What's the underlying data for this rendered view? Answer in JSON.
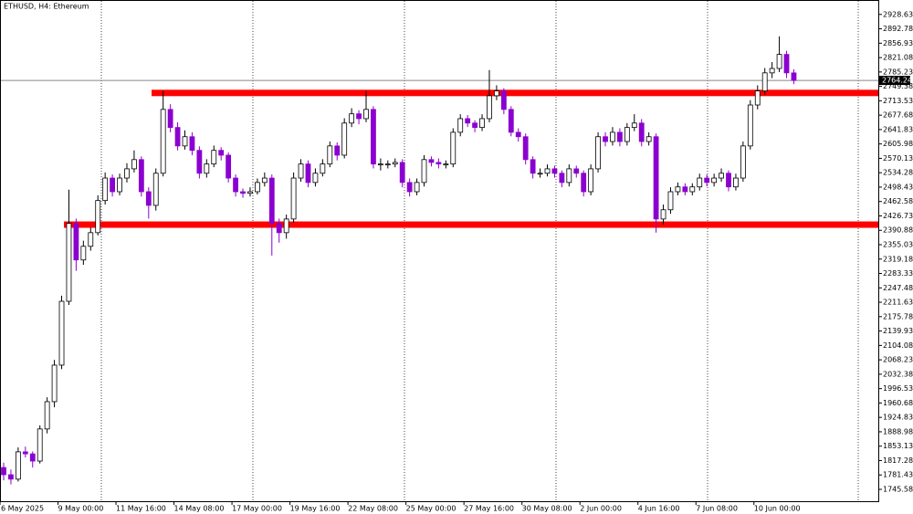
{
  "chart_data": {
    "type": "candlestick",
    "title": "ETHUSD, H4:  Ethereum",
    "ylim": [
      1716,
      2960
    ],
    "yticks": [
      2928.63,
      2892.78,
      2856.93,
      2821.08,
      2785.23,
      2749.38,
      2713.53,
      2677.68,
      2641.83,
      2605.98,
      2570.13,
      2534.28,
      2498.43,
      2462.58,
      2426.73,
      2390.88,
      2355.03,
      2319.18,
      2283.33,
      2247.48,
      2211.63,
      2175.78,
      2139.93,
      2104.08,
      2068.23,
      2032.38,
      1996.53,
      1960.68,
      1924.83,
      1888.98,
      1853.13,
      1817.28,
      1781.43,
      1745.58
    ],
    "last_price": 2764.24,
    "up_color": "#ffffff",
    "down_color": "#8b00d0",
    "levels": [
      {
        "value": 2733,
        "color": "#ff0000"
      },
      {
        "value": 2405,
        "color": "#ff0000"
      }
    ],
    "categories": [
      "6 May 2025",
      null,
      null,
      null,
      null,
      null,
      null,
      null,
      "9 May 00:00",
      null,
      null,
      null,
      null,
      null,
      null,
      null,
      "11 May 16:00",
      null,
      null,
      null,
      null,
      null,
      null,
      null,
      "14 May 08:00",
      null,
      null,
      null,
      null,
      null,
      null,
      null,
      "17 May 00:00",
      null,
      null,
      null,
      null,
      null,
      null,
      null,
      "19 May 16:00",
      null,
      null,
      null,
      null,
      null,
      null,
      null,
      "22 May 08:00",
      null,
      null,
      null,
      null,
      null,
      null,
      null,
      "25 May 00:00",
      null,
      null,
      null,
      null,
      null,
      null,
      null,
      "27 May 16:00",
      null,
      null,
      null,
      null,
      null,
      null,
      null,
      "30 May 08:00",
      null,
      null,
      null,
      null,
      null,
      null,
      null,
      "2 Jun 00:00",
      null,
      null,
      null,
      null,
      null,
      null,
      null,
      "4 Jun 16:00",
      null,
      null,
      null,
      null,
      null,
      null,
      null,
      "7 Jun 08:00",
      null,
      null,
      null,
      null,
      null,
      null,
      null,
      "10 Jun 00:00",
      null,
      null,
      null,
      null,
      null
    ],
    "ohlc": [
      [
        1800,
        1812,
        1768,
        1782
      ],
      [
        1782,
        1795,
        1758,
        1771
      ],
      [
        1771,
        1850,
        1765,
        1839
      ],
      [
        1839,
        1852,
        1825,
        1834
      ],
      [
        1834,
        1840,
        1800,
        1816
      ],
      [
        1816,
        1905,
        1810,
        1896
      ],
      [
        1896,
        1975,
        1885,
        1964
      ],
      [
        1964,
        2068,
        1950,
        2055
      ],
      [
        2055,
        2228,
        2045,
        2214
      ],
      [
        2214,
        2492,
        2205,
        2408
      ],
      [
        2408,
        2420,
        2290,
        2317
      ],
      [
        2317,
        2365,
        2305,
        2351
      ],
      [
        2351,
        2398,
        2340,
        2385
      ],
      [
        2385,
        2478,
        2378,
        2465
      ],
      [
        2465,
        2535,
        2455,
        2521
      ],
      [
        2521,
        2530,
        2475,
        2487
      ],
      [
        2487,
        2532,
        2478,
        2521
      ],
      [
        2521,
        2558,
        2510,
        2544
      ],
      [
        2544,
        2590,
        2535,
        2567
      ],
      [
        2567,
        2575,
        2475,
        2487
      ],
      [
        2487,
        2498,
        2420,
        2453
      ],
      [
        2453,
        2545,
        2440,
        2533
      ],
      [
        2533,
        2738,
        2525,
        2692
      ],
      [
        2692,
        2705,
        2635,
        2647
      ],
      [
        2647,
        2660,
        2590,
        2601
      ],
      [
        2601,
        2640,
        2592,
        2624
      ],
      [
        2624,
        2635,
        2578,
        2590
      ],
      [
        2590,
        2600,
        2520,
        2533
      ],
      [
        2533,
        2568,
        2522,
        2556
      ],
      [
        2556,
        2602,
        2548,
        2590
      ],
      [
        2590,
        2598,
        2565,
        2578
      ],
      [
        2578,
        2585,
        2510,
        2521
      ],
      [
        2521,
        2530,
        2475,
        2487
      ],
      [
        2487,
        2495,
        2472,
        2483
      ],
      [
        2483,
        2498,
        2475,
        2487
      ],
      [
        2487,
        2520,
        2480,
        2510
      ],
      [
        2510,
        2535,
        2500,
        2521
      ],
      [
        2521,
        2530,
        2328,
        2408
      ],
      [
        2408,
        2420,
        2360,
        2385
      ],
      [
        2385,
        2430,
        2370,
        2419
      ],
      [
        2419,
        2535,
        2410,
        2521
      ],
      [
        2521,
        2568,
        2512,
        2556
      ],
      [
        2556,
        2565,
        2498,
        2510
      ],
      [
        2510,
        2545,
        2500,
        2533
      ],
      [
        2533,
        2568,
        2525,
        2556
      ],
      [
        2556,
        2612,
        2548,
        2601
      ],
      [
        2601,
        2610,
        2565,
        2578
      ],
      [
        2578,
        2670,
        2570,
        2658
      ],
      [
        2658,
        2695,
        2648,
        2681
      ],
      [
        2681,
        2690,
        2655,
        2669
      ],
      [
        2669,
        2738,
        2660,
        2692
      ],
      [
        2692,
        2700,
        2545,
        2556
      ],
      [
        2556,
        2570,
        2540,
        2556
      ],
      [
        2556,
        2565,
        2545,
        2556
      ],
      [
        2556,
        2570,
        2548,
        2560
      ],
      [
        2560,
        2568,
        2498,
        2510
      ],
      [
        2510,
        2520,
        2475,
        2487
      ],
      [
        2487,
        2520,
        2478,
        2510
      ],
      [
        2510,
        2578,
        2500,
        2567
      ],
      [
        2567,
        2575,
        2550,
        2560
      ],
      [
        2560,
        2570,
        2545,
        2556
      ],
      [
        2556,
        2565,
        2545,
        2556
      ],
      [
        2556,
        2645,
        2548,
        2635
      ],
      [
        2635,
        2680,
        2625,
        2669
      ],
      [
        2669,
        2678,
        2648,
        2658
      ],
      [
        2658,
        2665,
        2635,
        2647
      ],
      [
        2647,
        2680,
        2638,
        2669
      ],
      [
        2669,
        2790,
        2660,
        2726
      ],
      [
        2726,
        2752,
        2715,
        2738
      ],
      [
        2738,
        2745,
        2680,
        2692
      ],
      [
        2692,
        2700,
        2625,
        2635
      ],
      [
        2635,
        2645,
        2612,
        2624
      ],
      [
        2624,
        2632,
        2555,
        2567
      ],
      [
        2567,
        2575,
        2520,
        2533
      ],
      [
        2533,
        2545,
        2522,
        2533
      ],
      [
        2533,
        2555,
        2525,
        2544
      ],
      [
        2544,
        2552,
        2522,
        2533
      ],
      [
        2533,
        2540,
        2498,
        2510
      ],
      [
        2510,
        2555,
        2500,
        2544
      ],
      [
        2544,
        2552,
        2522,
        2533
      ],
      [
        2533,
        2540,
        2475,
        2487
      ],
      [
        2487,
        2555,
        2478,
        2544
      ],
      [
        2544,
        2635,
        2535,
        2624
      ],
      [
        2624,
        2635,
        2600,
        2612
      ],
      [
        2612,
        2648,
        2602,
        2635
      ],
      [
        2635,
        2645,
        2600,
        2612
      ],
      [
        2612,
        2658,
        2602,
        2647
      ],
      [
        2647,
        2680,
        2638,
        2658
      ],
      [
        2658,
        2668,
        2600,
        2612
      ],
      [
        2612,
        2635,
        2602,
        2624
      ],
      [
        2624,
        2632,
        2385,
        2419
      ],
      [
        2419,
        2455,
        2405,
        2442
      ],
      [
        2442,
        2498,
        2432,
        2487
      ],
      [
        2487,
        2510,
        2478,
        2499
      ],
      [
        2499,
        2508,
        2478,
        2487
      ],
      [
        2487,
        2508,
        2478,
        2499
      ],
      [
        2499,
        2532,
        2490,
        2521
      ],
      [
        2521,
        2530,
        2500,
        2510
      ],
      [
        2510,
        2532,
        2500,
        2521
      ],
      [
        2521,
        2545,
        2512,
        2533
      ],
      [
        2533,
        2540,
        2488,
        2499
      ],
      [
        2499,
        2532,
        2490,
        2521
      ],
      [
        2521,
        2612,
        2512,
        2601
      ],
      [
        2601,
        2715,
        2592,
        2703
      ],
      [
        2703,
        2752,
        2692,
        2738
      ],
      [
        2738,
        2795,
        2728,
        2783
      ],
      [
        2783,
        2810,
        2770,
        2794
      ],
      [
        2794,
        2874,
        2785,
        2829
      ],
      [
        2829,
        2838,
        2770,
        2783
      ],
      [
        2783,
        2792,
        2755,
        2764.24
      ]
    ]
  }
}
